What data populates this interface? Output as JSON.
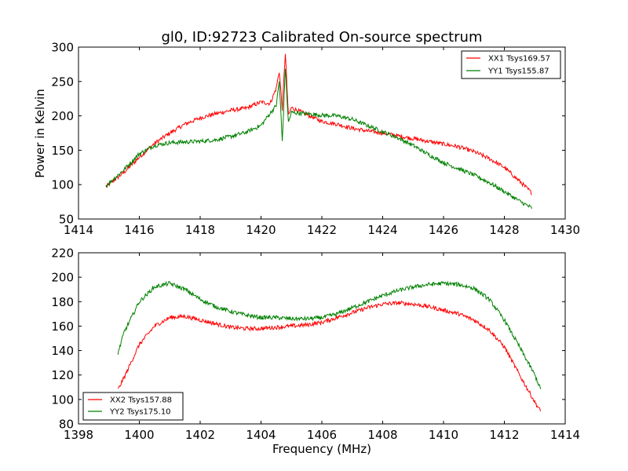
{
  "chart_data": [
    {
      "type": "line",
      "title": "gl0, ID:92723 Calibrated On-source spectrum",
      "xlabel": "",
      "ylabel": "Power in Kelvin",
      "xlim": [
        1414,
        1430
      ],
      "ylim": [
        50,
        300
      ],
      "xticks": [
        "1414",
        "1416",
        "1418",
        "1420",
        "1422",
        "1424",
        "1426",
        "1428",
        "1430"
      ],
      "yticks": [
        "50",
        "100",
        "150",
        "200",
        "250",
        "300"
      ],
      "legend_position": "top-right",
      "series": [
        {
          "name": "XX1 Tsys169.57",
          "color": "#ff0000",
          "points": [
            [
              1414.9,
              97
            ],
            [
              1415.5,
              118
            ],
            [
              1416.0,
              140
            ],
            [
              1416.5,
              160
            ],
            [
              1417.0,
              175
            ],
            [
              1417.5,
              188
            ],
            [
              1418.0,
              197
            ],
            [
              1418.5,
              203
            ],
            [
              1419.0,
              208
            ],
            [
              1419.5,
              211
            ],
            [
              1420.0,
              220
            ],
            [
              1420.3,
              218
            ],
            [
              1420.5,
              240
            ],
            [
              1420.6,
              265
            ],
            [
              1420.7,
              210
            ],
            [
              1420.8,
              292
            ],
            [
              1420.9,
              200
            ],
            [
              1421.0,
              212
            ],
            [
              1421.5,
              202
            ],
            [
              1422.0,
              192
            ],
            [
              1422.5,
              188
            ],
            [
              1423.0,
              182
            ],
            [
              1423.5,
              178
            ],
            [
              1424.0,
              175
            ],
            [
              1424.5,
              171
            ],
            [
              1425.0,
              167
            ],
            [
              1425.5,
              163
            ],
            [
              1426.0,
              159
            ],
            [
              1426.5,
              155
            ],
            [
              1427.0,
              148
            ],
            [
              1427.5,
              138
            ],
            [
              1428.0,
              125
            ],
            [
              1428.5,
              105
            ],
            [
              1428.9,
              88
            ]
          ]
        },
        {
          "name": "YY1 Tsys155.87",
          "color": "#008000",
          "points": [
            [
              1414.9,
              98
            ],
            [
              1415.5,
              122
            ],
            [
              1416.0,
              145
            ],
            [
              1416.5,
              157
            ],
            [
              1417.0,
              161
            ],
            [
              1417.5,
              162
            ],
            [
              1418.0,
              163
            ],
            [
              1418.5,
              165
            ],
            [
              1419.0,
              170
            ],
            [
              1419.5,
              176
            ],
            [
              1420.0,
              186
            ],
            [
              1420.2,
              198
            ],
            [
              1420.5,
              215
            ],
            [
              1420.6,
              250
            ],
            [
              1420.7,
              163
            ],
            [
              1420.8,
              270
            ],
            [
              1420.9,
              190
            ],
            [
              1421.0,
              205
            ],
            [
              1421.5,
              203
            ],
            [
              1422.0,
              201
            ],
            [
              1422.5,
              200
            ],
            [
              1423.0,
              195
            ],
            [
              1423.5,
              186
            ],
            [
              1424.0,
              177
            ],
            [
              1424.5,
              168
            ],
            [
              1425.0,
              157
            ],
            [
              1425.5,
              144
            ],
            [
              1426.0,
              132
            ],
            [
              1426.5,
              123
            ],
            [
              1427.0,
              114
            ],
            [
              1427.5,
              103
            ],
            [
              1428.0,
              90
            ],
            [
              1428.5,
              76
            ],
            [
              1428.9,
              66
            ]
          ]
        }
      ]
    },
    {
      "type": "line",
      "title": "",
      "xlabel": "Frequency (MHz)",
      "ylabel": "",
      "xlim": [
        1398,
        1414
      ],
      "ylim": [
        80,
        220
      ],
      "xticks": [
        "1398",
        "1400",
        "1402",
        "1404",
        "1406",
        "1408",
        "1410",
        "1412",
        "1414"
      ],
      "yticks": [
        "80",
        "100",
        "120",
        "140",
        "160",
        "180",
        "200",
        "220"
      ],
      "legend_position": "bottom-left",
      "series": [
        {
          "name": "XX2 Tsys157.88",
          "color": "#ff0000",
          "points": [
            [
              1399.3,
              108
            ],
            [
              1399.5,
              118
            ],
            [
              1400.0,
              145
            ],
            [
              1400.5,
              160
            ],
            [
              1401.0,
              167
            ],
            [
              1401.5,
              168
            ],
            [
              1402.0,
              165
            ],
            [
              1402.5,
              162
            ],
            [
              1403.0,
              159
            ],
            [
              1403.5,
              158
            ],
            [
              1404.0,
              158
            ],
            [
              1404.5,
              159
            ],
            [
              1405.0,
              160
            ],
            [
              1405.5,
              161
            ],
            [
              1406.0,
              163
            ],
            [
              1406.5,
              167
            ],
            [
              1407.0,
              171
            ],
            [
              1407.5,
              175
            ],
            [
              1408.0,
              178
            ],
            [
              1408.5,
              179
            ],
            [
              1409.0,
              178
            ],
            [
              1409.5,
              176
            ],
            [
              1410.0,
              173
            ],
            [
              1410.5,
              170
            ],
            [
              1411.0,
              165
            ],
            [
              1411.5,
              157
            ],
            [
              1412.0,
              143
            ],
            [
              1412.5,
              120
            ],
            [
              1413.0,
              98
            ],
            [
              1413.2,
              90
            ]
          ]
        },
        {
          "name": "YY2 Tsys175.10",
          "color": "#008000",
          "points": [
            [
              1399.3,
              138
            ],
            [
              1399.5,
              155
            ],
            [
              1400.0,
              180
            ],
            [
              1400.5,
              192
            ],
            [
              1401.0,
              195
            ],
            [
              1401.5,
              190
            ],
            [
              1402.0,
              182
            ],
            [
              1402.5,
              176
            ],
            [
              1403.0,
              172
            ],
            [
              1403.5,
              169
            ],
            [
              1404.0,
              167
            ],
            [
              1404.5,
              167
            ],
            [
              1405.0,
              166
            ],
            [
              1405.5,
              166
            ],
            [
              1406.0,
              167
            ],
            [
              1406.5,
              170
            ],
            [
              1407.0,
              175
            ],
            [
              1407.5,
              180
            ],
            [
              1408.0,
              185
            ],
            [
              1408.5,
              189
            ],
            [
              1409.0,
              192
            ],
            [
              1409.5,
              194
            ],
            [
              1410.0,
              195
            ],
            [
              1410.5,
              194
            ],
            [
              1411.0,
              191
            ],
            [
              1411.5,
              182
            ],
            [
              1412.0,
              165
            ],
            [
              1412.5,
              143
            ],
            [
              1413.0,
              120
            ],
            [
              1413.2,
              108
            ]
          ]
        }
      ]
    }
  ]
}
